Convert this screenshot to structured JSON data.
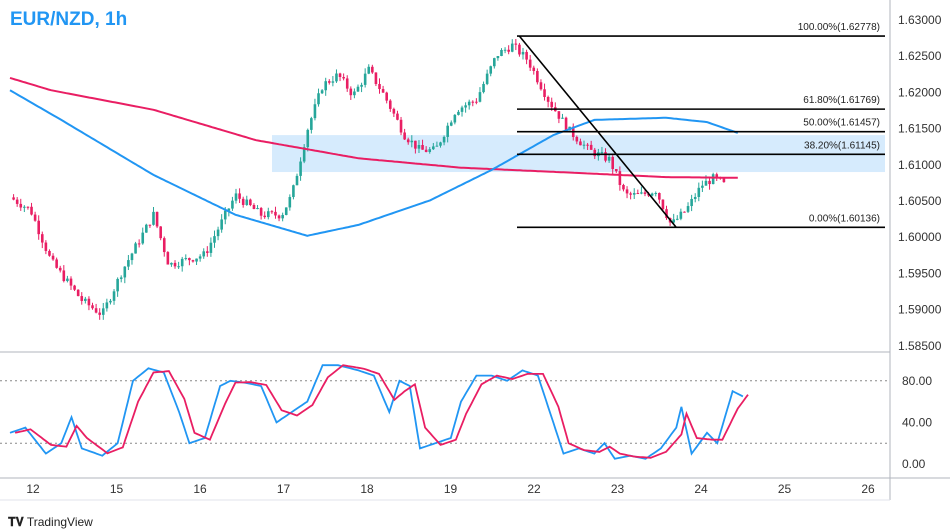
{
  "header": {
    "title": "EUR/NZD, 1h"
  },
  "brand": "TradingView",
  "colors": {
    "up": "#26a69a",
    "down": "#e91e63",
    "ma_fast": "#2196f3",
    "ma_slow": "#e91e63",
    "zone": "#bbdefb"
  },
  "chart_data": {
    "type": "candlestick",
    "title": "EUR/NZD, 1h",
    "x_ticks": [
      "12",
      "15",
      "16",
      "17",
      "18",
      "19",
      "22",
      "23",
      "24",
      "25",
      "26"
    ],
    "y_ticks": [
      "1.63000",
      "1.62500",
      "1.62000",
      "1.61500",
      "1.61000",
      "1.60500",
      "1.60000",
      "1.59500",
      "1.59000",
      "1.58500"
    ],
    "ylim": [
      1.5843,
      1.6328
    ],
    "price_path": [
      [
        0,
        1.6055
      ],
      [
        2,
        1.6038
      ],
      [
        4,
        1.5967
      ],
      [
        7,
        1.5913
      ],
      [
        9,
        1.5893
      ],
      [
        11,
        1.5955
      ],
      [
        14,
        1.6031
      ],
      [
        15.5,
        1.5962
      ],
      [
        19,
        1.5976
      ],
      [
        22,
        1.6058
      ],
      [
        24.5,
        1.6031
      ],
      [
        26.5,
        1.6031
      ],
      [
        27.5,
        1.6058
      ],
      [
        29,
        1.6148
      ],
      [
        30.5,
        1.621
      ],
      [
        32,
        1.6224
      ],
      [
        33.5,
        1.6196
      ],
      [
        35,
        1.6231
      ],
      [
        36.5,
        1.6196
      ],
      [
        38.5,
        1.6141
      ],
      [
        40,
        1.612
      ],
      [
        41.5,
        1.612
      ],
      [
        43.5,
        1.6176
      ],
      [
        45.5,
        1.619
      ],
      [
        47.5,
        1.6252
      ],
      [
        49,
        1.6265
      ],
      [
        50.5,
        1.6245
      ],
      [
        52.5,
        1.619
      ],
      [
        54.5,
        1.6148
      ],
      [
        56.5,
        1.612
      ],
      [
        58.5,
        1.6107
      ],
      [
        60,
        1.6058
      ],
      [
        61.5,
        1.6058
      ],
      [
        63,
        1.6065
      ],
      [
        64.5,
        1.6017
      ],
      [
        66,
        1.6038
      ],
      [
        67.5,
        1.6072
      ],
      [
        68.7,
        1.6082
      ],
      [
        69.7,
        1.6072
      ]
    ],
    "ma_slow_path": [
      [
        0,
        1.622
      ],
      [
        4,
        1.6203
      ],
      [
        14,
        1.6176
      ],
      [
        24,
        1.6134
      ],
      [
        34,
        1.6109
      ],
      [
        44,
        1.6096
      ],
      [
        55,
        1.6089
      ],
      [
        64,
        1.6083
      ],
      [
        71,
        1.6082
      ]
    ],
    "ma_fast_path": [
      [
        0,
        1.6203
      ],
      [
        5,
        1.6162
      ],
      [
        14,
        1.6086
      ],
      [
        22,
        1.6031
      ],
      [
        29,
        1.6002
      ],
      [
        34,
        1.6017
      ],
      [
        41,
        1.6051
      ],
      [
        47,
        1.6093
      ],
      [
        53,
        1.6141
      ],
      [
        57,
        1.6162
      ],
      [
        64,
        1.6165
      ],
      [
        68,
        1.6159
      ],
      [
        71,
        1.6144
      ]
    ],
    "support_zone": [
      1.609,
      1.6141
    ],
    "fibonacci": [
      {
        "label": "100.00%(1.62778)",
        "price": 1.62778
      },
      {
        "label": "61.80%(1.61769)",
        "price": 1.61769
      },
      {
        "label": "50.00%(1.61457)",
        "price": 1.61457
      },
      {
        "label": "38.20%(1.61145)",
        "price": 1.61145
      },
      {
        "label": "0.00%(1.60136)",
        "price": 1.60136
      }
    ],
    "trendline": [
      [
        49.7,
        1.62778
      ],
      [
        65,
        1.60136
      ]
    ],
    "stochastic": {
      "y_ticks": [
        "80.00",
        "40.00",
        "0.00"
      ],
      "levels": [
        80,
        20
      ],
      "k_path": [
        [
          0,
          30
        ],
        [
          1.5,
          35
        ],
        [
          3.5,
          10
        ],
        [
          5,
          20
        ],
        [
          6,
          45
        ],
        [
          7,
          15
        ],
        [
          9,
          8
        ],
        [
          10.5,
          20
        ],
        [
          12,
          80
        ],
        [
          13.5,
          92
        ],
        [
          15,
          88
        ],
        [
          16.5,
          50
        ],
        [
          17.5,
          20
        ],
        [
          19,
          25
        ],
        [
          20.5,
          75
        ],
        [
          21.5,
          80
        ],
        [
          23,
          78
        ],
        [
          24.5,
          75
        ],
        [
          26,
          40
        ],
        [
          27.5,
          50
        ],
        [
          29,
          60
        ],
        [
          30.5,
          95
        ],
        [
          32,
          95
        ],
        [
          34,
          90
        ],
        [
          35.5,
          85
        ],
        [
          37,
          50
        ],
        [
          38,
          80
        ],
        [
          39,
          75
        ],
        [
          40,
          15
        ],
        [
          41.5,
          20
        ],
        [
          43,
          25
        ],
        [
          44,
          60
        ],
        [
          45.5,
          85
        ],
        [
          47,
          85
        ],
        [
          48.5,
          80
        ],
        [
          50,
          90
        ],
        [
          51.5,
          85
        ],
        [
          53,
          40
        ],
        [
          54,
          10
        ],
        [
          55.5,
          15
        ],
        [
          57,
          10
        ],
        [
          58,
          20
        ],
        [
          59,
          5
        ],
        [
          60.5,
          8
        ],
        [
          62,
          5
        ],
        [
          63.5,
          15
        ],
        [
          65,
          35
        ],
        [
          65.5,
          55
        ],
        [
          66.5,
          10
        ],
        [
          68,
          30
        ],
        [
          69,
          20
        ],
        [
          70.5,
          70
        ],
        [
          71.5,
          65
        ]
      ]
    }
  }
}
